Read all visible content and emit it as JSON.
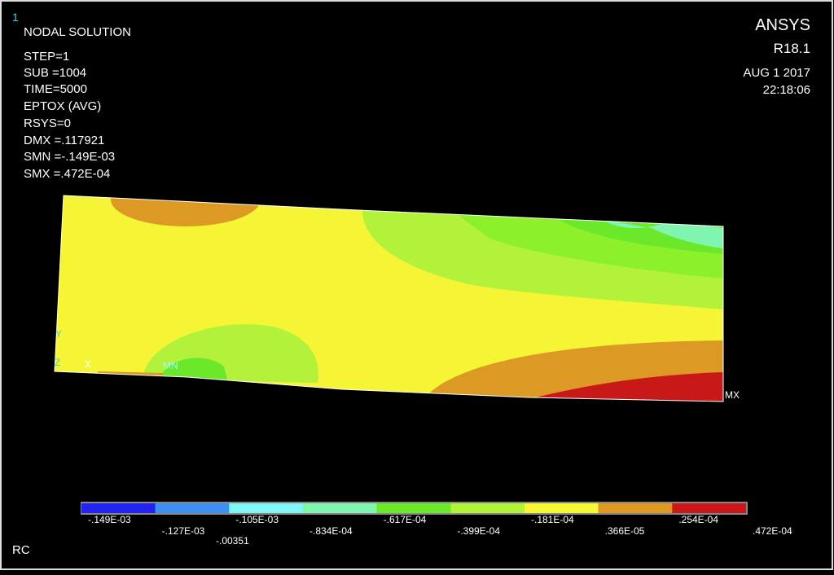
{
  "window_number": "1",
  "header": {
    "title": "NODAL SOLUTION",
    "lines": [
      "STEP=1",
      "SUB =1004",
      "TIME=5000",
      "EPTOX     (AVG)",
      "RSYS=0",
      "DMX =.117921",
      "SMN =-.149E-03",
      "SMX =.472E-04"
    ]
  },
  "branding": {
    "product": "ANSYS",
    "version": "R18.1",
    "date": "AUG  1 2017",
    "time": "22:18:06"
  },
  "plot": {
    "max_label": "MX",
    "min_label": "MN",
    "triad": [
      "Y",
      "Z",
      "X"
    ]
  },
  "legend": {
    "colors": [
      "#2323f0",
      "#3d8ff2",
      "#7ff5f5",
      "#80f5b0",
      "#6ce82a",
      "#b2f23a",
      "#f8f835",
      "#dc9a24",
      "#c81818"
    ],
    "labels": [
      "-.149E-03",
      "-.127E-03",
      "-.105E-03",
      "-.834E-04",
      "-.617E-04",
      "-.399E-04",
      "-.181E-04",
      ".366E-05",
      ".254E-04",
      ".472E-04"
    ],
    "overlay": "-.00351"
  },
  "footer": "RC"
}
